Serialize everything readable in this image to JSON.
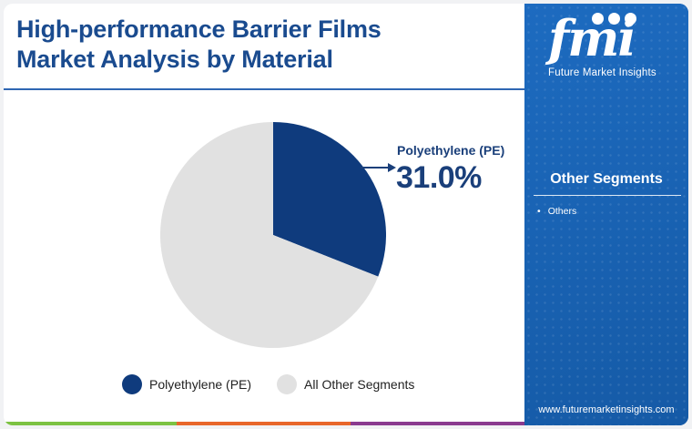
{
  "header": {
    "title_line1": "High-performance Barrier Films",
    "title_line2": "Market Analysis by Material"
  },
  "brand": {
    "logo_text": "fmi",
    "logo_subtitle": "Future Market Insights",
    "website": "www.futuremarketinsights.com"
  },
  "side_panel": {
    "title": "Other Segments",
    "items": [
      "Others"
    ]
  },
  "callout": {
    "name": "Polyethylene (PE)",
    "value_label": "31.0%"
  },
  "colors": {
    "accent": "#1a4b8f",
    "panel": "#1a62b3",
    "pe": "#0f3b7d",
    "others": "#e1e1e1",
    "bar_green": "#7cc242",
    "bar_orange": "#e8662a",
    "bar_purple": "#8a3a8f"
  },
  "chart_data": {
    "type": "pie",
    "title": "High-performance Barrier Films Market Analysis by Material",
    "slices": [
      {
        "name": "Polyethylene (PE)",
        "value": 31.0,
        "color": "#0f3b7d"
      },
      {
        "name": "All Other Segments",
        "value": 69.0,
        "color": "#e1e1e1"
      }
    ],
    "legend_position": "bottom",
    "start_angle_deg": 0,
    "direction": "clockwise"
  }
}
